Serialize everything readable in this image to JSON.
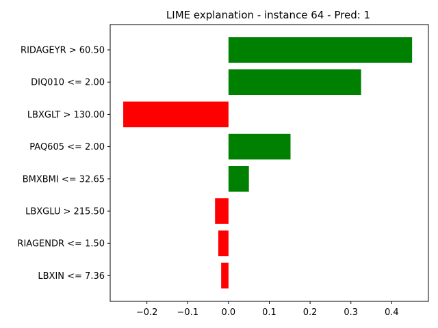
{
  "chart_data": {
    "type": "bar",
    "orientation": "horizontal",
    "title": "LIME explanation - instance 64 - Pred: 1",
    "xlabel": "",
    "ylabel": "",
    "xlim": [
      -0.29,
      0.49
    ],
    "xticks": [
      -0.2,
      -0.1,
      0.0,
      0.1,
      0.2,
      0.3,
      0.4
    ],
    "xtick_labels": [
      "−0.2",
      "−0.1",
      "0.0",
      "0.1",
      "0.2",
      "0.3",
      "0.4"
    ],
    "grid": false,
    "legend": "none",
    "categories": [
      "RIDAGEYR > 60.50",
      "DIQ010 <= 2.00",
      "LBXGLT > 130.00",
      "PAQ605 <= 2.00",
      "BMXBMI <= 32.65",
      "LBXGLU > 215.50",
      "RIAGENDR <= 1.50",
      "LBXIN <= 7.36"
    ],
    "values": [
      0.45,
      0.325,
      -0.258,
      0.152,
      0.05,
      -0.033,
      -0.025,
      -0.018
    ],
    "colors": {
      "positive": "#008000",
      "negative": "#ff0000"
    }
  }
}
